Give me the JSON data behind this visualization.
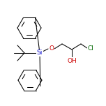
{
  "background_color": "#ffffff",
  "line_color": "#000000",
  "atom_colors": {
    "O": "#cc0000",
    "Si": "#0000cc",
    "Cl": "#006600",
    "OH": "#cc0000"
  },
  "figsize": [
    1.52,
    1.52
  ],
  "dpi": 100,
  "lw": 0.75,
  "font_size": 6.5
}
